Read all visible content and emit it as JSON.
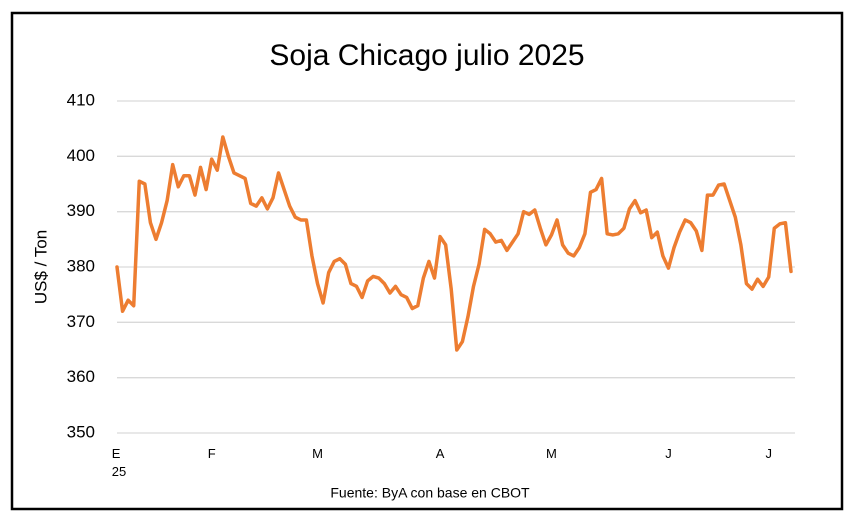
{
  "chart_data": {
    "type": "line",
    "title": "Soja Chicago julio 2025",
    "y_label": "US$ / Ton",
    "source": "Fuente: ByA con base en CBOT",
    "categories": [
      "E\n25",
      null,
      null,
      null,
      null,
      null,
      null,
      null,
      null,
      null,
      null,
      null,
      null,
      null,
      null,
      null,
      null,
      "F",
      null,
      null,
      null,
      null,
      null,
      null,
      null,
      null,
      null,
      null,
      null,
      null,
      null,
      null,
      null,
      null,
      null,
      null,
      "M",
      null,
      null,
      null,
      null,
      null,
      null,
      null,
      null,
      null,
      null,
      null,
      null,
      null,
      null,
      null,
      null,
      null,
      null,
      null,
      null,
      null,
      "A",
      null,
      null,
      null,
      null,
      null,
      null,
      null,
      null,
      null,
      null,
      null,
      null,
      null,
      null,
      null,
      null,
      null,
      null,
      null,
      "M",
      null,
      null,
      null,
      null,
      null,
      null,
      null,
      null,
      null,
      null,
      null,
      null,
      null,
      null,
      null,
      null,
      null,
      null,
      null,
      null,
      "J",
      null,
      null,
      null,
      null,
      null,
      null,
      null,
      null,
      null,
      null,
      null,
      null,
      null,
      null,
      null,
      null,
      null,
      "J",
      null,
      null,
      null,
      null
    ],
    "series": [
      {
        "name": "Soja",
        "color": "#ed7d31",
        "values": [
          380,
          372,
          374,
          373,
          395.5,
          395,
          388,
          385,
          388,
          392,
          398.5,
          394.5,
          396.5,
          396.5,
          393,
          398,
          394,
          399.5,
          397.5,
          403.5,
          400,
          397,
          396.5,
          396,
          391.5,
          391,
          392.5,
          390.5,
          392.5,
          397,
          394,
          391,
          389,
          388.5,
          388.5,
          382,
          377,
          373.5,
          379,
          381,
          381.5,
          380.5,
          377,
          376.5,
          374.5,
          377.5,
          378.3,
          378,
          377,
          375.3,
          376.5,
          375,
          374.5,
          372.5,
          373,
          378,
          381,
          378,
          385.5,
          384,
          376,
          365,
          366.5,
          371,
          376.5,
          380.5,
          386.8,
          386,
          384.5,
          384.8,
          383,
          384.5,
          386,
          390,
          389.5,
          390.3,
          387,
          384,
          385.8,
          388.5,
          384,
          382.5,
          382,
          383.5,
          386,
          393.5,
          394,
          396,
          386,
          385.8,
          386,
          387,
          390.5,
          392,
          389.8,
          390.3,
          385.3,
          386.3,
          382,
          379.8,
          383.5,
          386.3,
          388.5,
          388,
          386.5,
          383,
          393,
          393,
          394.8,
          395,
          392,
          389,
          384,
          377,
          376,
          377.8,
          376.5,
          378.2,
          387,
          387.8,
          388,
          379.2
        ]
      }
    ],
    "ylim": [
      350,
      410
    ],
    "yticks": [
      350,
      360,
      370,
      380,
      390,
      400,
      410
    ],
    "grid": true
  }
}
